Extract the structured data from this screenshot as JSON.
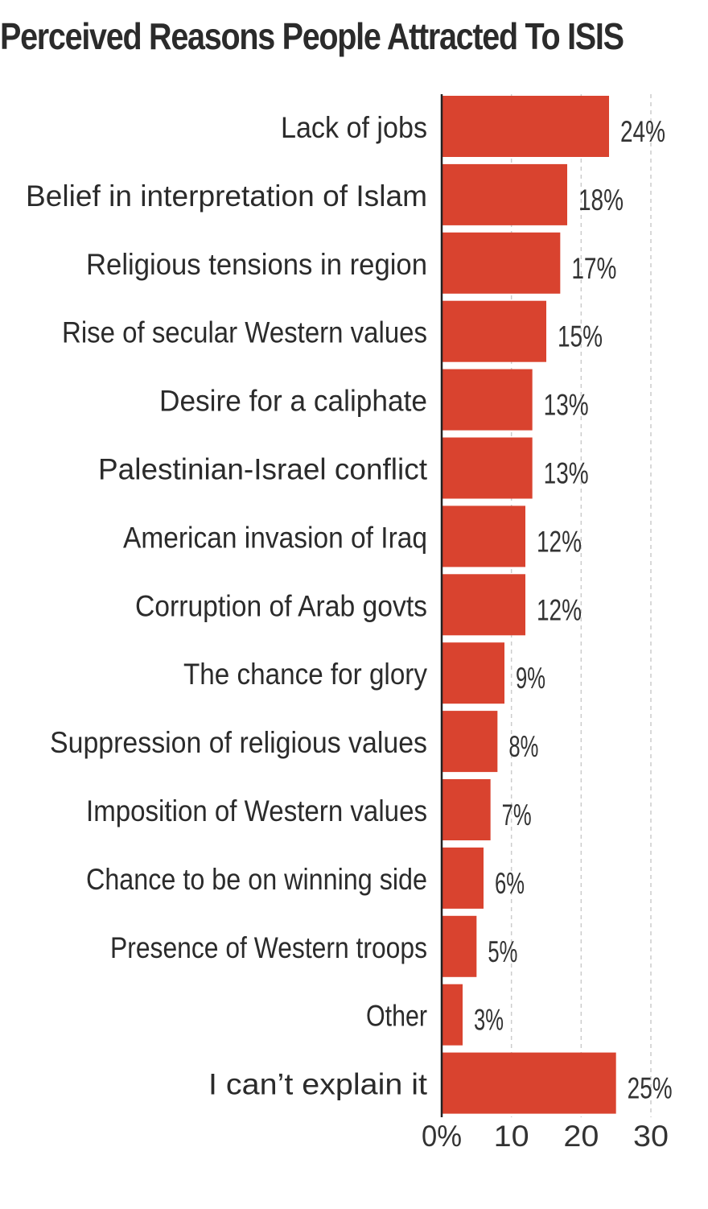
{
  "chart_data": {
    "type": "bar",
    "orientation": "horizontal",
    "title": "Perceived Reasons People Attracted To ISIS",
    "categories": [
      "Lack of jobs",
      "Belief in interpretation of Islam",
      "Religious tensions in region",
      "Rise of secular Western values",
      "Desire for a caliphate",
      "Palestinian-Israel conflict",
      "American invasion of Iraq",
      "Corruption of Arab govts",
      "The chance for glory",
      "Suppression of religious values",
      "Imposition of Western values",
      "Chance to be on winning side",
      "Presence of Western troops",
      "Other",
      "I can’t explain it"
    ],
    "values": [
      24,
      18,
      17,
      15,
      13,
      13,
      12,
      12,
      9,
      8,
      7,
      6,
      5,
      3,
      25
    ],
    "value_labels": [
      "24%",
      "18%",
      "17%",
      "15%",
      "13%",
      "13%",
      "12%",
      "12%",
      "9%",
      "8%",
      "7%",
      "6%",
      "5%",
      "3%",
      "25%"
    ],
    "xticks": [
      0,
      10,
      20,
      30
    ],
    "xtick_labels": [
      "0%",
      "10",
      "20",
      "30"
    ],
    "xlim": [
      0,
      30
    ],
    "xlabel": "",
    "ylabel": "",
    "grid": "vertical dashed",
    "legend": "none",
    "bar_color": "#d9432f",
    "grid_color": "#cccccc",
    "axis_color": "#222222"
  }
}
